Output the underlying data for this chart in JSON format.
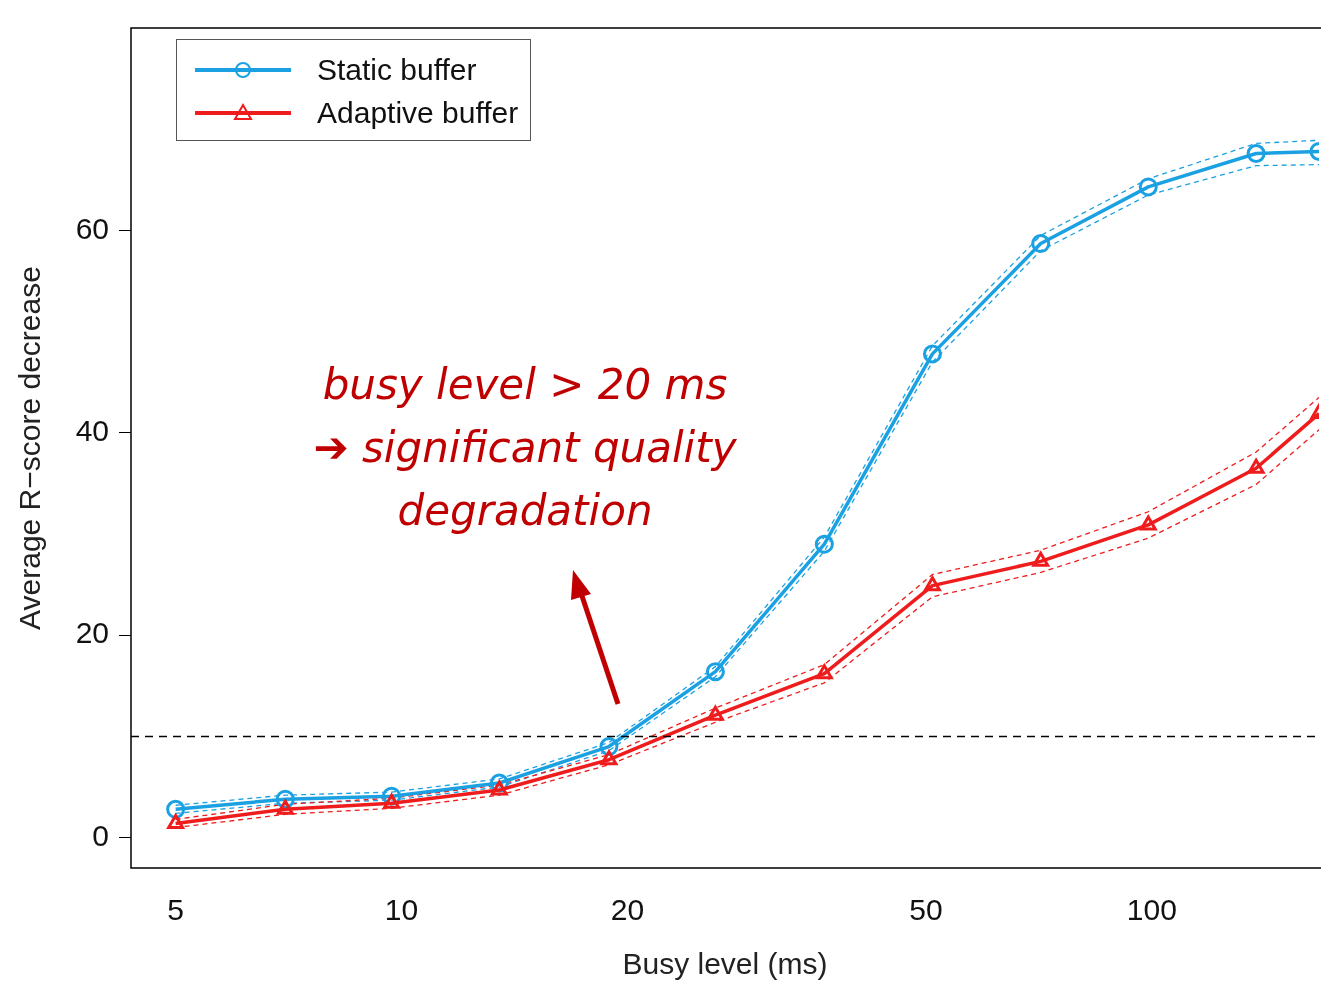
{
  "chart_data": {
    "type": "line",
    "xlabel": "Busy level (ms)",
    "ylabel": "Average R−score decrease",
    "log": "x",
    "xlim": [
      4.36,
      167
    ],
    "xticks": [
      5,
      10,
      20,
      50,
      100
    ],
    "ylim": [
      -3,
      80
    ],
    "yticks": [
      0,
      20,
      40,
      60
    ],
    "grid": false,
    "legend": "top left",
    "x": [
      5,
      7,
      9.7,
      13.5,
      18.9,
      26.2,
      36.6,
      51,
      71.1,
      98.9,
      137.7,
      167
    ],
    "series": [
      {
        "color": "#1ba1e2",
        "line_style": "dashed",
        "marker": "none",
        "values": [
          2.4,
          3.4,
          3.7,
          5,
          8.6,
          15.9,
          28.3,
          47,
          58,
          63.5,
          66.4,
          66.5
        ]
      },
      {
        "color": "#1ba1e2",
        "line_style": "dashed",
        "marker": "none",
        "values": [
          3.2,
          4.2,
          4.5,
          5.8,
          9.4,
          16.9,
          29.7,
          48.6,
          59.5,
          65.1,
          68.6,
          68.9
        ]
      },
      {
        "color": "#ee1c1c",
        "line_style": "dashed",
        "marker": "none",
        "values": [
          1,
          2.3,
          2.9,
          4.2,
          7.2,
          11.4,
          15.3,
          23.8,
          26.2,
          29.6,
          34.9,
          40.3
        ]
      },
      {
        "color": "#ee1c1c",
        "line_style": "dashed",
        "marker": "none",
        "values": [
          1.8,
          3.3,
          3.9,
          5.2,
          8.2,
          12.8,
          17.1,
          26,
          28.4,
          32.2,
          38.1,
          43.5
        ]
      },
      {
        "name": "Static buffer",
        "color": "#1ba1e2",
        "line_style": "solid",
        "marker": "circle",
        "values": [
          2.8,
          3.8,
          4.1,
          5.4,
          9,
          16.4,
          29,
          47.8,
          58.7,
          64.3,
          67.6,
          67.8
        ]
      },
      {
        "name": "Adaptive buffer",
        "color": "#ee1c1c",
        "line_style": "solid",
        "marker": "triangle",
        "values": [
          1.4,
          2.8,
          3.4,
          4.7,
          7.7,
          12.1,
          16.2,
          24.9,
          27.3,
          30.9,
          36.5,
          41.9
        ]
      }
    ],
    "ref_lines": [
      {
        "axis": "y",
        "value": 10,
        "line_style": "dashed",
        "color": "#000000"
      }
    ],
    "annotations": [
      "busy level > 20 ms\n➔ significant quality\ndegradation"
    ]
  }
}
